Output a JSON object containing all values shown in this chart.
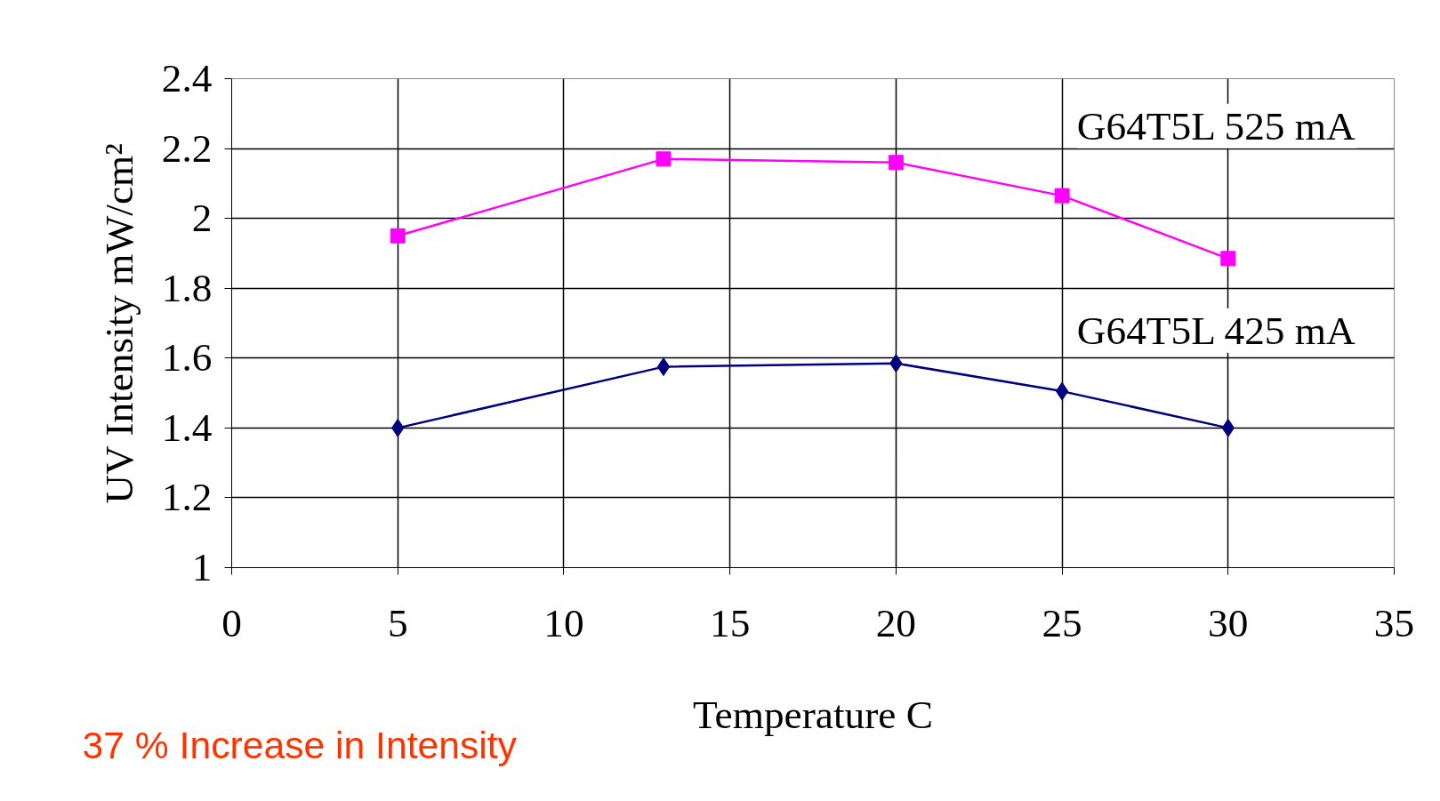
{
  "chart_data": {
    "type": "line",
    "xlabel": "Temperature C",
    "ylabel": "UV Intensity mW/cm²",
    "x": [
      5,
      13,
      20,
      25,
      30
    ],
    "series": [
      {
        "name": "G64T5L 525 mA",
        "color": "#ff00ff",
        "marker": "square",
        "values": [
          1.95,
          2.17,
          2.16,
          2.065,
          1.885
        ]
      },
      {
        "name": "G64T5L 425 mA",
        "color": "#000080",
        "marker": "diamond",
        "values": [
          1.4,
          1.575,
          1.585,
          1.505,
          1.4
        ]
      }
    ],
    "xlim": [
      0,
      35
    ],
    "xticks": [
      0,
      5,
      10,
      15,
      20,
      25,
      30,
      35
    ],
    "ylim": [
      1,
      2.4
    ],
    "yticks": [
      1,
      1.2,
      1.4,
      1.6,
      1.8,
      2,
      2.2,
      2.4
    ],
    "grid": true,
    "line_style": "solid",
    "annotations": [
      "37 % Increase in Intensity"
    ]
  }
}
